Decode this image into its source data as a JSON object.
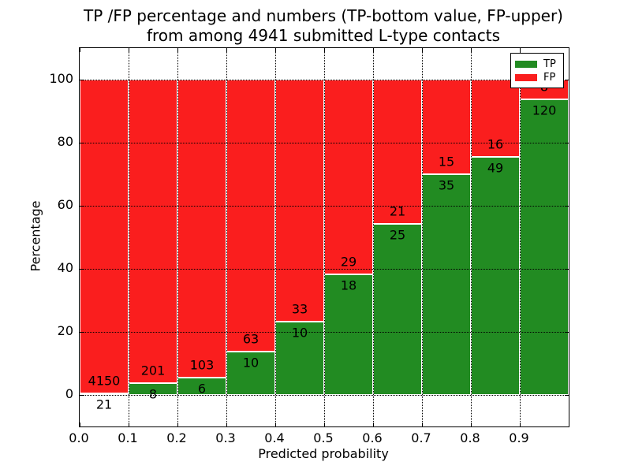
{
  "title": {
    "line1": "TP /FP percentage and numbers (TP-bottom value, FP-upper)",
    "line2": "from among 4941 submitted L-type contacts"
  },
  "axes": {
    "xlabel": "Predicted probability",
    "ylabel": "Percentage",
    "x_tick_labels": [
      "0.0",
      "0.1",
      "0.2",
      "0.3",
      "0.4",
      "0.5",
      "0.6",
      "0.7",
      "0.8",
      "0.9"
    ],
    "y_tick_labels": [
      "0",
      "20",
      "40",
      "60",
      "80",
      "100"
    ],
    "y_tick_values": [
      0,
      20,
      40,
      60,
      80,
      100
    ]
  },
  "legend": {
    "entries": [
      {
        "label": "TP",
        "color": "#228b22"
      },
      {
        "label": "FP",
        "color": "#fa1e1e"
      }
    ]
  },
  "colors": {
    "tp": "#228b22",
    "fp": "#fa1e1e",
    "grid": "#000000",
    "bar_edge": "#ffffff"
  },
  "chart_data": {
    "type": "bar",
    "stacked": true,
    "normalized_to": 100,
    "title": "TP /FP percentage and numbers (TP-bottom value, FP-upper) from among 4941 submitted L-type contacts",
    "xlabel": "Predicted probability",
    "ylabel": "Percentage",
    "xlim": [
      0,
      1.0
    ],
    "ylim": [
      -10,
      110
    ],
    "grid": "dotted",
    "legend_position": "upper right",
    "bins": [
      "0.0-0.1",
      "0.1-0.2",
      "0.2-0.3",
      "0.3-0.4",
      "0.4-0.5",
      "0.5-0.6",
      "0.6-0.7",
      "0.7-0.8",
      "0.8-0.9",
      "0.9-1.0"
    ],
    "series": [
      {
        "name": "TP",
        "color": "#228b22",
        "counts": [
          21,
          8,
          6,
          10,
          10,
          18,
          25,
          35,
          49,
          120
        ]
      },
      {
        "name": "FP",
        "color": "#fa1e1e",
        "counts": [
          4150,
          201,
          103,
          63,
          33,
          29,
          21,
          15,
          16,
          8
        ]
      }
    ],
    "tp_percent": [
      0.5,
      3.83,
      5.5,
      13.7,
      23.26,
      38.3,
      54.35,
      70.0,
      75.38,
      93.75
    ],
    "fp_percent": [
      99.5,
      96.17,
      94.5,
      86.3,
      76.74,
      61.7,
      45.65,
      30.0,
      24.62,
      6.25
    ]
  }
}
